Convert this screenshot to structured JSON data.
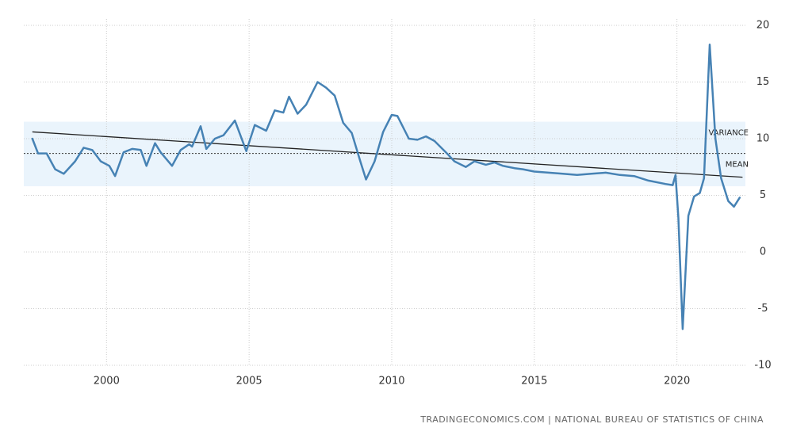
{
  "chart_data": {
    "type": "line",
    "x": [
      1997.4,
      1997.6,
      1997.9,
      1998.2,
      1998.5,
      1998.9,
      1999.2,
      1999.5,
      1999.8,
      2000.1,
      2000.3,
      2000.6,
      2000.9,
      2001.2,
      2001.4,
      2001.7,
      2001.9,
      2002.3,
      2002.6,
      2002.9,
      2003.0,
      2003.3,
      2003.5,
      2003.8,
      2004.1,
      2004.5,
      2004.9,
      2005.2,
      2005.6,
      2005.9,
      2006.2,
      2006.4,
      2006.7,
      2007.0,
      2007.4,
      2007.7,
      2008.0,
      2008.3,
      2008.6,
      2008.9,
      2009.1,
      2009.4,
      2009.7,
      2010.0,
      2010.2,
      2010.6,
      2010.9,
      2011.2,
      2011.5,
      2011.9,
      2012.2,
      2012.6,
      2012.9,
      2013.3,
      2013.6,
      2013.9,
      2014.3,
      2014.6,
      2015.0,
      2015.5,
      2016.0,
      2016.5,
      2017.0,
      2017.5,
      2018.0,
      2018.5,
      2019.0,
      2019.6,
      2019.85,
      2019.95,
      2020.05,
      2020.2,
      2020.4,
      2020.6,
      2020.8,
      2020.95,
      2021.15,
      2021.35,
      2021.55,
      2021.8,
      2022.0,
      2022.2
    ],
    "series": [
      {
        "color": "#4682b4",
        "values": [
          10,
          8.7,
          8.7,
          7.3,
          6.9,
          8,
          9.2,
          9,
          8,
          7.6,
          6.7,
          8.8,
          9.1,
          9,
          7.6,
          9.6,
          8.8,
          7.6,
          9,
          9.5,
          9.3,
          11.1,
          9.1,
          10,
          10.3,
          11.6,
          8.9,
          11.2,
          10.7,
          12.5,
          12.3,
          13.7,
          12.2,
          13,
          15,
          14.5,
          13.8,
          11.4,
          10.5,
          8,
          6.4,
          8,
          10.6,
          12.1,
          12,
          10,
          9.9,
          10.2,
          9.8,
          8.8,
          8,
          7.5,
          8,
          7.7,
          7.9,
          7.6,
          7.4,
          7.3,
          7.1,
          7.0,
          6.9,
          6.8,
          6.9,
          7.0,
          6.8,
          6.7,
          6.3,
          6.0,
          5.9,
          6.8,
          3,
          -6.8,
          3.2,
          4.9,
          5.2,
          6.5,
          18.3,
          10,
          6.5,
          4.5,
          4.0,
          4.8
        ]
      }
    ],
    "trend": {
      "x": [
        1997.4,
        2022.3
      ],
      "values": [
        10.6,
        6.6
      ],
      "color": "#222"
    },
    "mean": 8.7,
    "variance_band": [
      5.8,
      11.5
    ],
    "band_color": "#eaf4fc",
    "annotations": [
      "VARIANCE",
      "MEAN"
    ],
    "xlim": [
      1997.1,
      2022.4
    ],
    "ylim": [
      -10,
      20
    ],
    "xticks": [
      2000,
      2005,
      2010,
      2015,
      2020
    ],
    "yticks": [
      20,
      15,
      10,
      5,
      0,
      -5,
      -10
    ],
    "grid": true,
    "source": "TRADINGECONOMICS.COM | NATIONAL BUREAU OF STATISTICS OF CHINA"
  }
}
